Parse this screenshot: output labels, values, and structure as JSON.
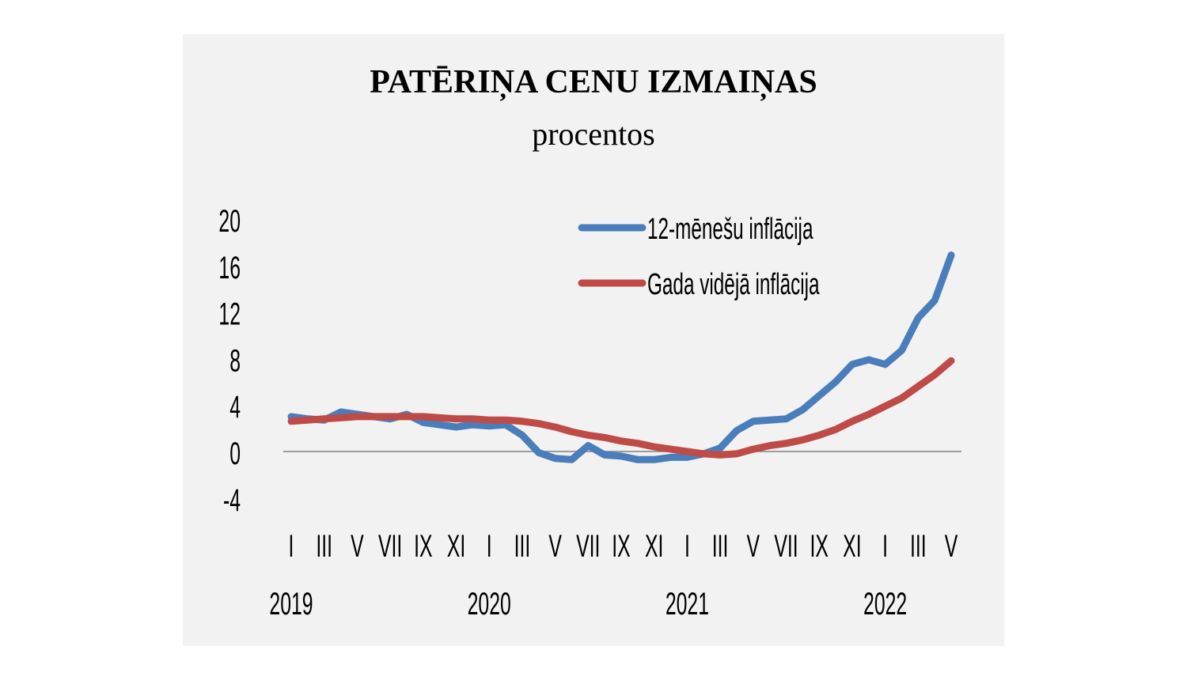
{
  "chart_data": {
    "type": "line",
    "title": "PATĒRIŅA CENU IZMAIŅAS",
    "subtitle": "procentos",
    "xlabel": "",
    "ylabel": "",
    "ylim": [
      -4,
      20
    ],
    "yticks": [
      20,
      16,
      12,
      8,
      4,
      0,
      -4
    ],
    "month_ticks": [
      "I",
      "III",
      "V",
      "VII",
      "IX",
      "XI",
      "I",
      "III",
      "V",
      "VII",
      "IX",
      "XI",
      "I",
      "III",
      "V",
      "VII",
      "IX",
      "XI",
      "I",
      "III",
      "V"
    ],
    "year_labels": [
      "2019",
      "2020",
      "2021",
      "2022"
    ],
    "grid": false,
    "legend_position": "upper-right",
    "x": [
      "2019-01",
      "2019-02",
      "2019-03",
      "2019-04",
      "2019-05",
      "2019-06",
      "2019-07",
      "2019-08",
      "2019-09",
      "2019-10",
      "2019-11",
      "2019-12",
      "2020-01",
      "2020-02",
      "2020-03",
      "2020-04",
      "2020-05",
      "2020-06",
      "2020-07",
      "2020-08",
      "2020-09",
      "2020-10",
      "2020-11",
      "2020-12",
      "2021-01",
      "2021-02",
      "2021-03",
      "2021-04",
      "2021-05",
      "2021-06",
      "2021-07",
      "2021-08",
      "2021-09",
      "2021-10",
      "2021-11",
      "2021-12",
      "2022-01",
      "2022-02",
      "2022-03",
      "2022-04",
      "2022-05"
    ],
    "series": [
      {
        "name": "12-mēnešu inflācija",
        "color": "#4a7ebb",
        "values": [
          3.0,
          2.8,
          2.7,
          3.4,
          3.2,
          3.0,
          2.8,
          3.2,
          2.5,
          2.3,
          2.1,
          2.3,
          2.2,
          2.3,
          1.4,
          -0.1,
          -0.6,
          -0.7,
          0.5,
          -0.3,
          -0.4,
          -0.7,
          -0.7,
          -0.5,
          -0.5,
          -0.2,
          0.3,
          1.8,
          2.6,
          2.7,
          2.8,
          3.6,
          4.8,
          6.0,
          7.5,
          7.9,
          7.5,
          8.7,
          11.5,
          13.0,
          16.9
        ]
      },
      {
        "name": "Gada vidējā inflācija",
        "color": "#be4b48",
        "values": [
          2.6,
          2.7,
          2.8,
          2.9,
          3.0,
          3.0,
          3.0,
          3.0,
          3.0,
          2.9,
          2.8,
          2.8,
          2.7,
          2.7,
          2.6,
          2.4,
          2.1,
          1.7,
          1.4,
          1.2,
          0.9,
          0.7,
          0.4,
          0.2,
          0.0,
          -0.2,
          -0.3,
          -0.2,
          0.2,
          0.5,
          0.7,
          1.0,
          1.4,
          1.9,
          2.6,
          3.2,
          3.9,
          4.6,
          5.6,
          6.6,
          7.8
        ]
      }
    ]
  },
  "colors": {
    "panel_background": "#f2f2f2",
    "zero_line": "#808080"
  }
}
